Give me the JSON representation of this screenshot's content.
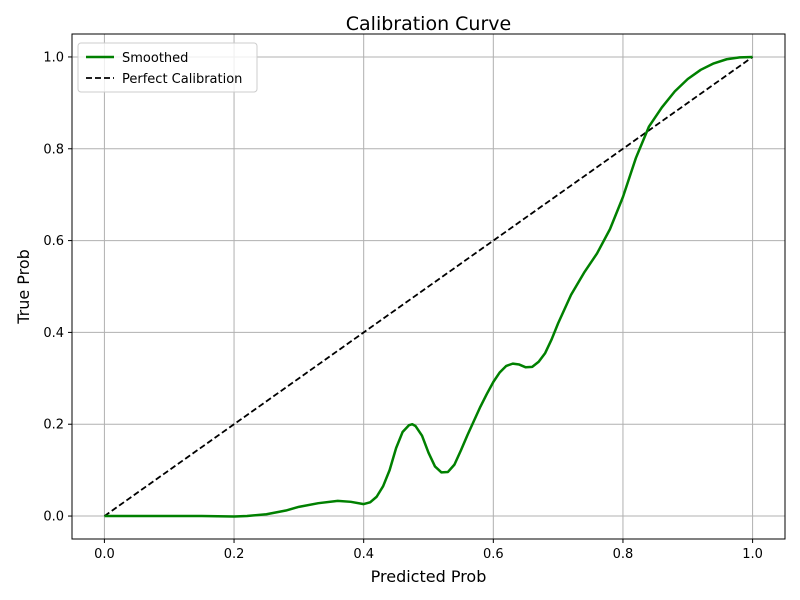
{
  "chart_data": {
    "type": "line",
    "title": "Calibration Curve",
    "xlabel": "Predicted Prob",
    "ylabel": "True Prob",
    "xlim": [
      -0.05,
      1.05
    ],
    "ylim": [
      -0.05,
      1.05
    ],
    "xticks": [
      0.0,
      0.2,
      0.4,
      0.6,
      0.8,
      1.0
    ],
    "yticks": [
      0.0,
      0.2,
      0.4,
      0.6,
      0.8,
      1.0
    ],
    "xtick_labels": [
      "0.0",
      "0.2",
      "0.4",
      "0.6",
      "0.8",
      "1.0"
    ],
    "ytick_labels": [
      "0.0",
      "0.2",
      "0.4",
      "0.6",
      "0.8",
      "1.0"
    ],
    "grid": true,
    "legend_position": "upper-left",
    "series": [
      {
        "name": "Smoothed",
        "color": "#008000",
        "style": "solid",
        "x": [
          0.0,
          0.05,
          0.1,
          0.15,
          0.2,
          0.22,
          0.25,
          0.28,
          0.3,
          0.33,
          0.36,
          0.38,
          0.4,
          0.41,
          0.42,
          0.43,
          0.44,
          0.45,
          0.46,
          0.47,
          0.475,
          0.48,
          0.49,
          0.5,
          0.51,
          0.52,
          0.53,
          0.54,
          0.55,
          0.56,
          0.57,
          0.58,
          0.59,
          0.6,
          0.61,
          0.62,
          0.63,
          0.64,
          0.65,
          0.66,
          0.67,
          0.68,
          0.69,
          0.7,
          0.72,
          0.74,
          0.76,
          0.78,
          0.8,
          0.82,
          0.84,
          0.86,
          0.88,
          0.9,
          0.92,
          0.94,
          0.96,
          0.98,
          1.0
        ],
        "y": [
          0.0,
          0.0,
          0.0,
          0.0,
          -0.001,
          0.0,
          0.004,
          0.012,
          0.02,
          0.028,
          0.033,
          0.031,
          0.026,
          0.03,
          0.042,
          0.065,
          0.1,
          0.148,
          0.183,
          0.198,
          0.2,
          0.196,
          0.175,
          0.138,
          0.108,
          0.095,
          0.096,
          0.112,
          0.143,
          0.176,
          0.207,
          0.238,
          0.266,
          0.292,
          0.313,
          0.327,
          0.332,
          0.33,
          0.324,
          0.325,
          0.336,
          0.355,
          0.385,
          0.42,
          0.482,
          0.53,
          0.572,
          0.625,
          0.695,
          0.78,
          0.848,
          0.89,
          0.925,
          0.952,
          0.972,
          0.986,
          0.995,
          0.999,
          1.0
        ]
      },
      {
        "name": "Perfect Calibration",
        "color": "#000000",
        "style": "dashed",
        "x": [
          0.0,
          1.0
        ],
        "y": [
          0.0,
          1.0
        ]
      }
    ]
  }
}
